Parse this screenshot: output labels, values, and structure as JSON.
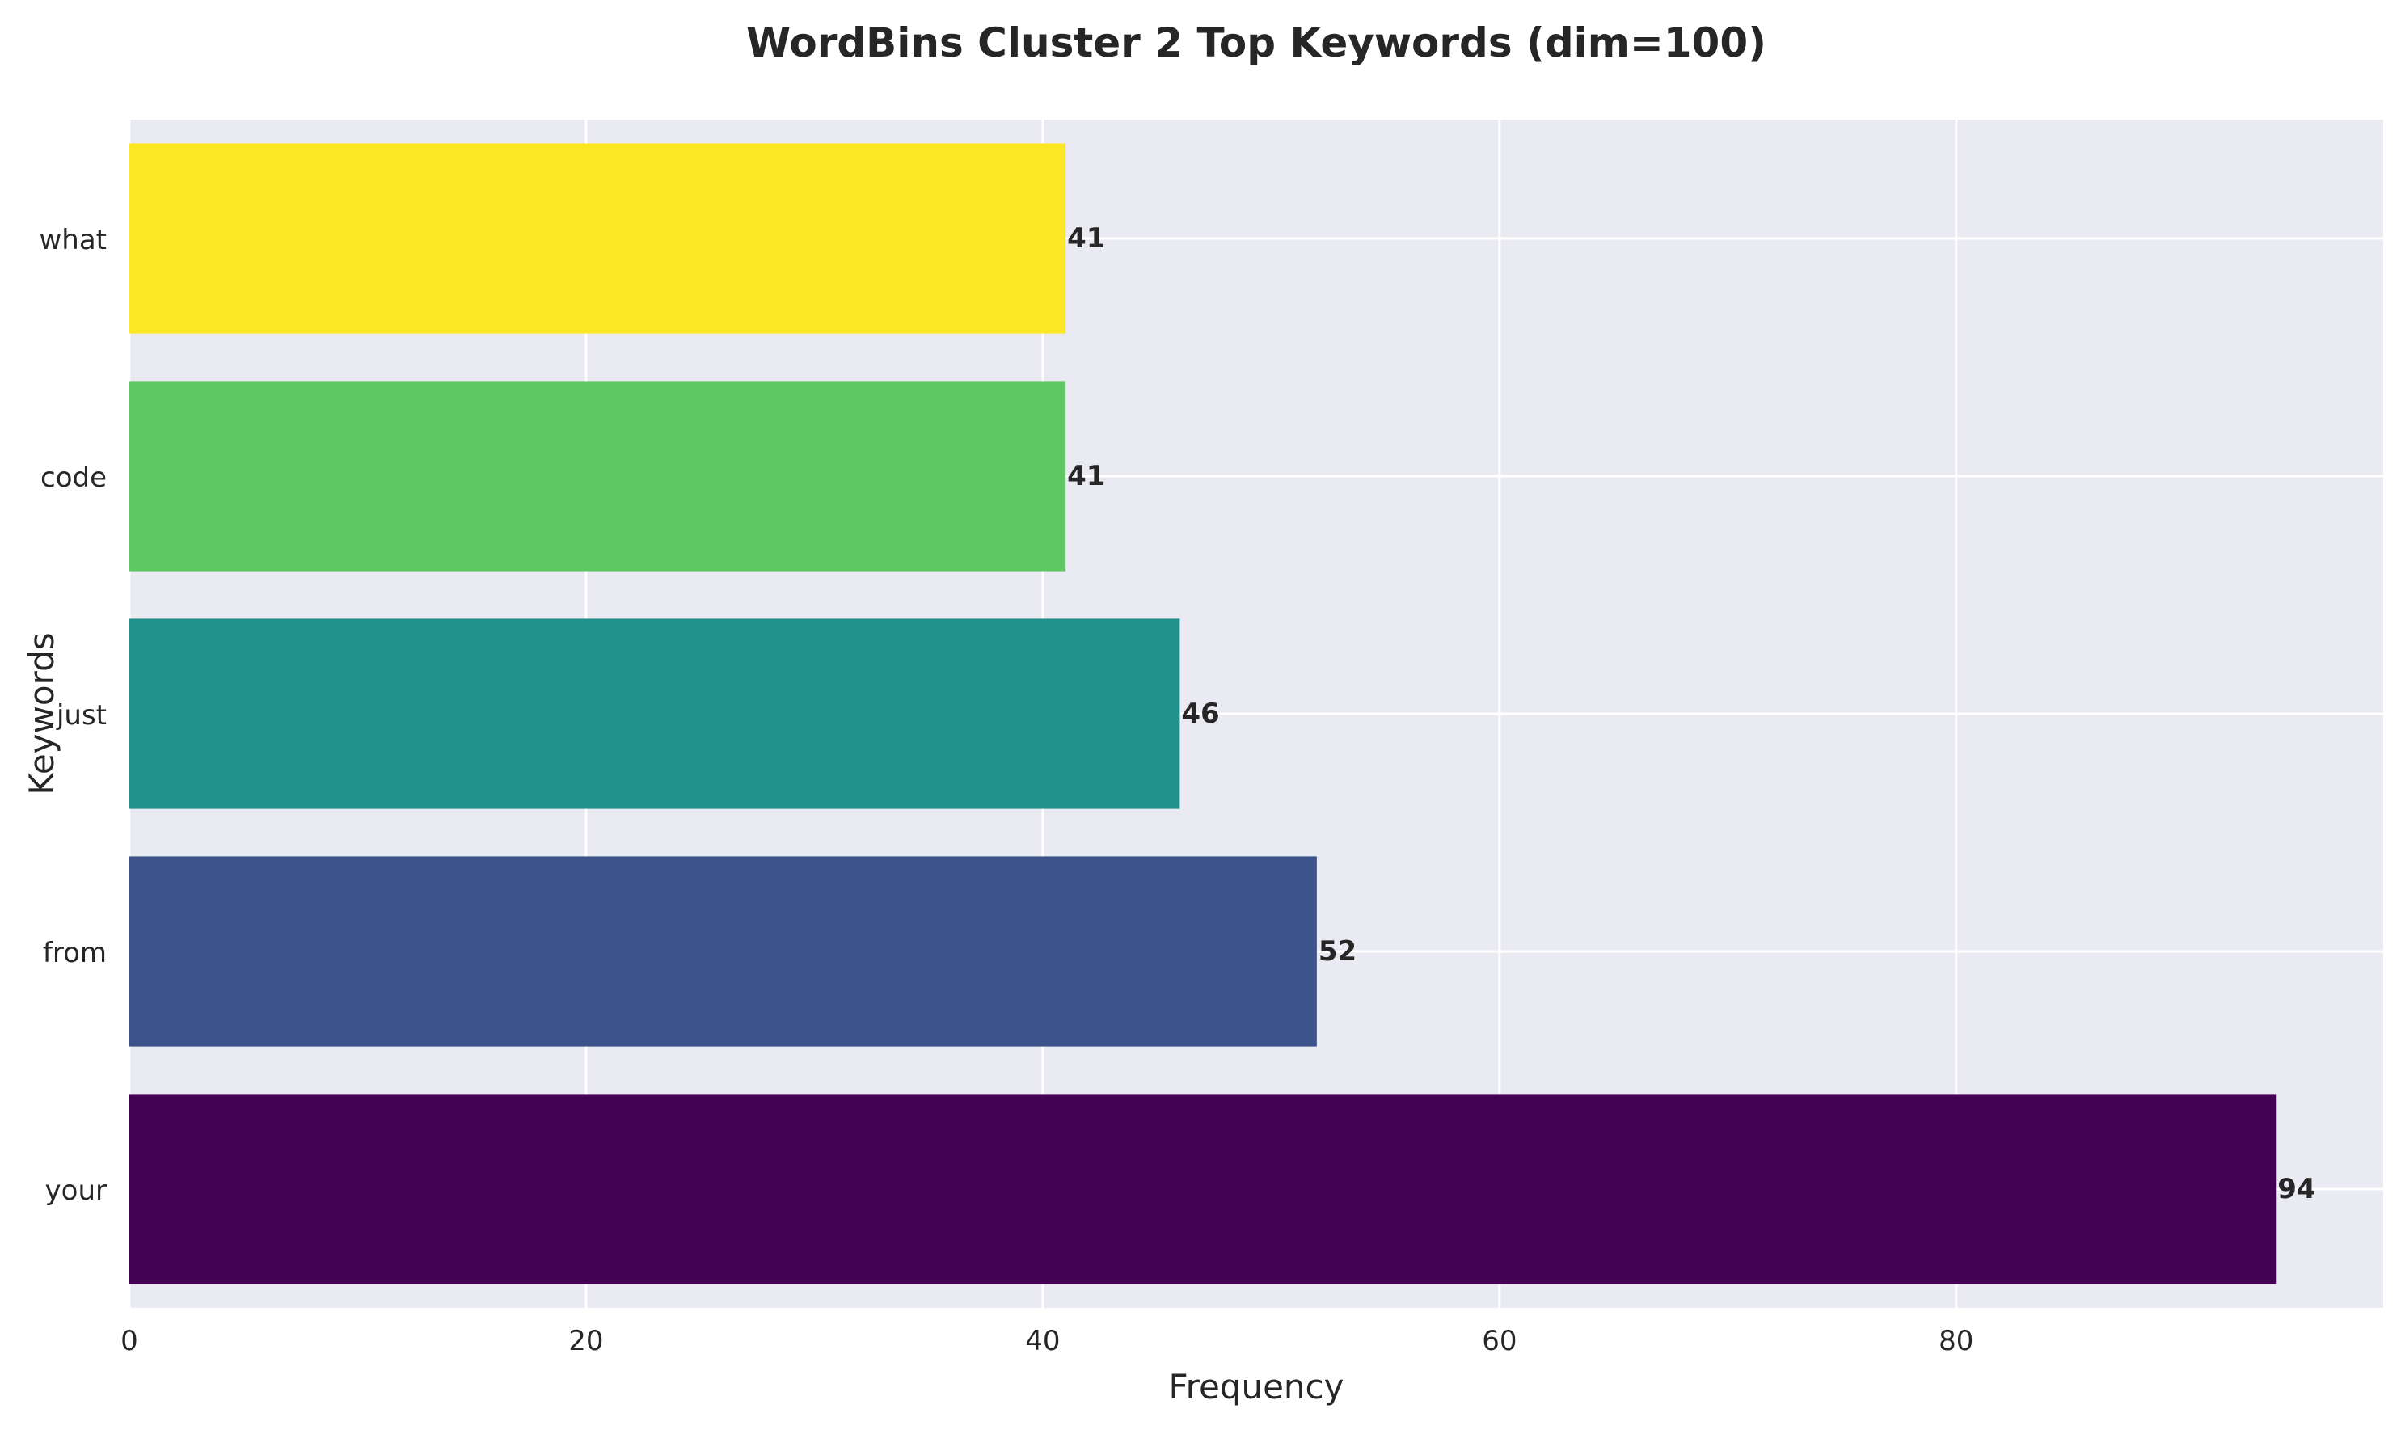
{
  "chart_data": {
    "type": "bar",
    "orientation": "horizontal",
    "title": "WordBins Cluster 2 Top Keywords (dim=100)",
    "xlabel": "Frequency",
    "ylabel": "Keywords",
    "categories": [
      "your",
      "from",
      "just",
      "code",
      "what"
    ],
    "values": [
      94,
      52,
      46,
      41,
      41
    ],
    "value_labels": [
      "94",
      "52",
      "46",
      "41",
      "41"
    ],
    "colors": [
      "#440154",
      "#3b528b",
      "#21918c",
      "#5ec962",
      "#fde725"
    ],
    "xlim": [
      0,
      98.7
    ],
    "xticks": [
      0,
      20,
      40,
      60,
      80
    ],
    "xtick_labels": [
      "0",
      "20",
      "40",
      "60",
      "80"
    ],
    "grid": true,
    "background": "#eaeaf2",
    "grid_color": "#ffffff"
  }
}
